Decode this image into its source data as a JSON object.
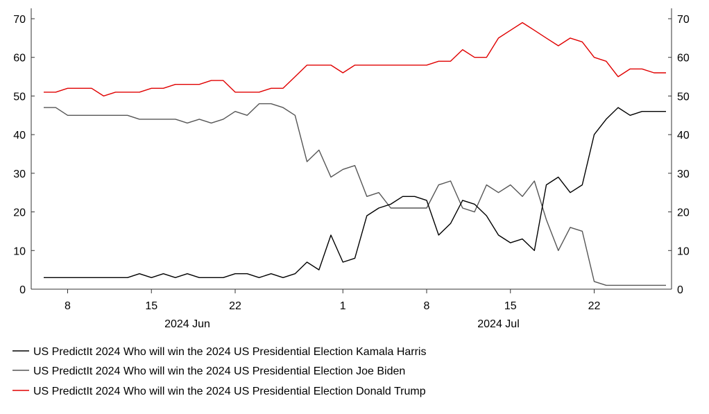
{
  "chart_data": {
    "type": "line",
    "title": "",
    "xlabel": "",
    "ylabel": "",
    "ylim": [
      0,
      70
    ],
    "y_ticks": [
      0,
      10,
      20,
      30,
      40,
      50,
      60,
      70
    ],
    "y_tick_labels": [
      "0",
      "10",
      "20",
      "30",
      "40",
      "50",
      "60",
      "70"
    ],
    "dual_y_axis": true,
    "grid": false,
    "legend_position": "bottom",
    "x_start_date": "2024-06-06",
    "x_end_date": "2024-07-28",
    "x_ticks": [
      {
        "date": "2024-06-08",
        "label": "8"
      },
      {
        "date": "2024-06-15",
        "label": "15"
      },
      {
        "date": "2024-06-22",
        "label": "22"
      },
      {
        "date": "2024-07-01",
        "label": "1"
      },
      {
        "date": "2024-07-08",
        "label": "8"
      },
      {
        "date": "2024-07-15",
        "label": "15"
      },
      {
        "date": "2024-07-22",
        "label": "22"
      }
    ],
    "x_month_labels": [
      {
        "date": "2024-06-18",
        "label": "2024 Jun"
      },
      {
        "date": "2024-07-14",
        "label": "2024 Jul"
      }
    ],
    "x": [
      "2024-06-06",
      "2024-06-07",
      "2024-06-08",
      "2024-06-09",
      "2024-06-10",
      "2024-06-11",
      "2024-06-12",
      "2024-06-13",
      "2024-06-14",
      "2024-06-15",
      "2024-06-16",
      "2024-06-17",
      "2024-06-18",
      "2024-06-19",
      "2024-06-20",
      "2024-06-21",
      "2024-06-22",
      "2024-06-23",
      "2024-06-24",
      "2024-06-25",
      "2024-06-26",
      "2024-06-27",
      "2024-06-28",
      "2024-06-29",
      "2024-06-30",
      "2024-07-01",
      "2024-07-02",
      "2024-07-03",
      "2024-07-04",
      "2024-07-05",
      "2024-07-06",
      "2024-07-07",
      "2024-07-08",
      "2024-07-09",
      "2024-07-10",
      "2024-07-11",
      "2024-07-12",
      "2024-07-13",
      "2024-07-14",
      "2024-07-15",
      "2024-07-16",
      "2024-07-17",
      "2024-07-18",
      "2024-07-19",
      "2024-07-20",
      "2024-07-21",
      "2024-07-22",
      "2024-07-23",
      "2024-07-24",
      "2024-07-25",
      "2024-07-26",
      "2024-07-27",
      "2024-07-28"
    ],
    "series": [
      {
        "name": "US PredictIt 2024 Who will win the 2024 US Presidential Election Kamala Harris",
        "color": "#000000",
        "values": [
          3,
          3,
          3,
          3,
          3,
          3,
          3,
          3,
          4,
          3,
          4,
          3,
          4,
          3,
          3,
          3,
          4,
          4,
          3,
          4,
          3,
          4,
          7,
          5,
          14,
          7,
          8,
          19,
          21,
          22,
          24,
          24,
          23,
          14,
          17,
          23,
          22,
          19,
          14,
          12,
          13,
          10,
          27,
          29,
          25,
          27,
          40,
          44,
          47,
          45,
          46,
          46,
          46
        ]
      },
      {
        "name": "US PredictIt 2024 Who will win the 2024 US Presidential Election Joe Biden",
        "color": "#555555",
        "values": [
          47,
          47,
          45,
          45,
          45,
          45,
          45,
          45,
          44,
          44,
          44,
          44,
          43,
          44,
          43,
          44,
          46,
          45,
          48,
          48,
          47,
          45,
          33,
          36,
          29,
          31,
          32,
          24,
          25,
          21,
          21,
          21,
          21,
          27,
          28,
          21,
          20,
          27,
          25,
          27,
          24,
          28,
          18,
          10,
          16,
          15,
          2,
          1,
          1,
          1,
          1,
          1,
          1
        ]
      },
      {
        "name": "US PredictIt 2024 Who will win the 2024 US Presidential Election Donald Trump",
        "color": "#e00000",
        "values": [
          51,
          51,
          52,
          52,
          52,
          50,
          51,
          51,
          51,
          52,
          52,
          53,
          53,
          53,
          54,
          54,
          51,
          51,
          51,
          52,
          52,
          55,
          58,
          58,
          58,
          56,
          58,
          58,
          58,
          58,
          58,
          58,
          58,
          59,
          59,
          62,
          60,
          60,
          65,
          67,
          69,
          67,
          65,
          63,
          65,
          64,
          60,
          59,
          55,
          57,
          57,
          56,
          56
        ]
      }
    ]
  }
}
